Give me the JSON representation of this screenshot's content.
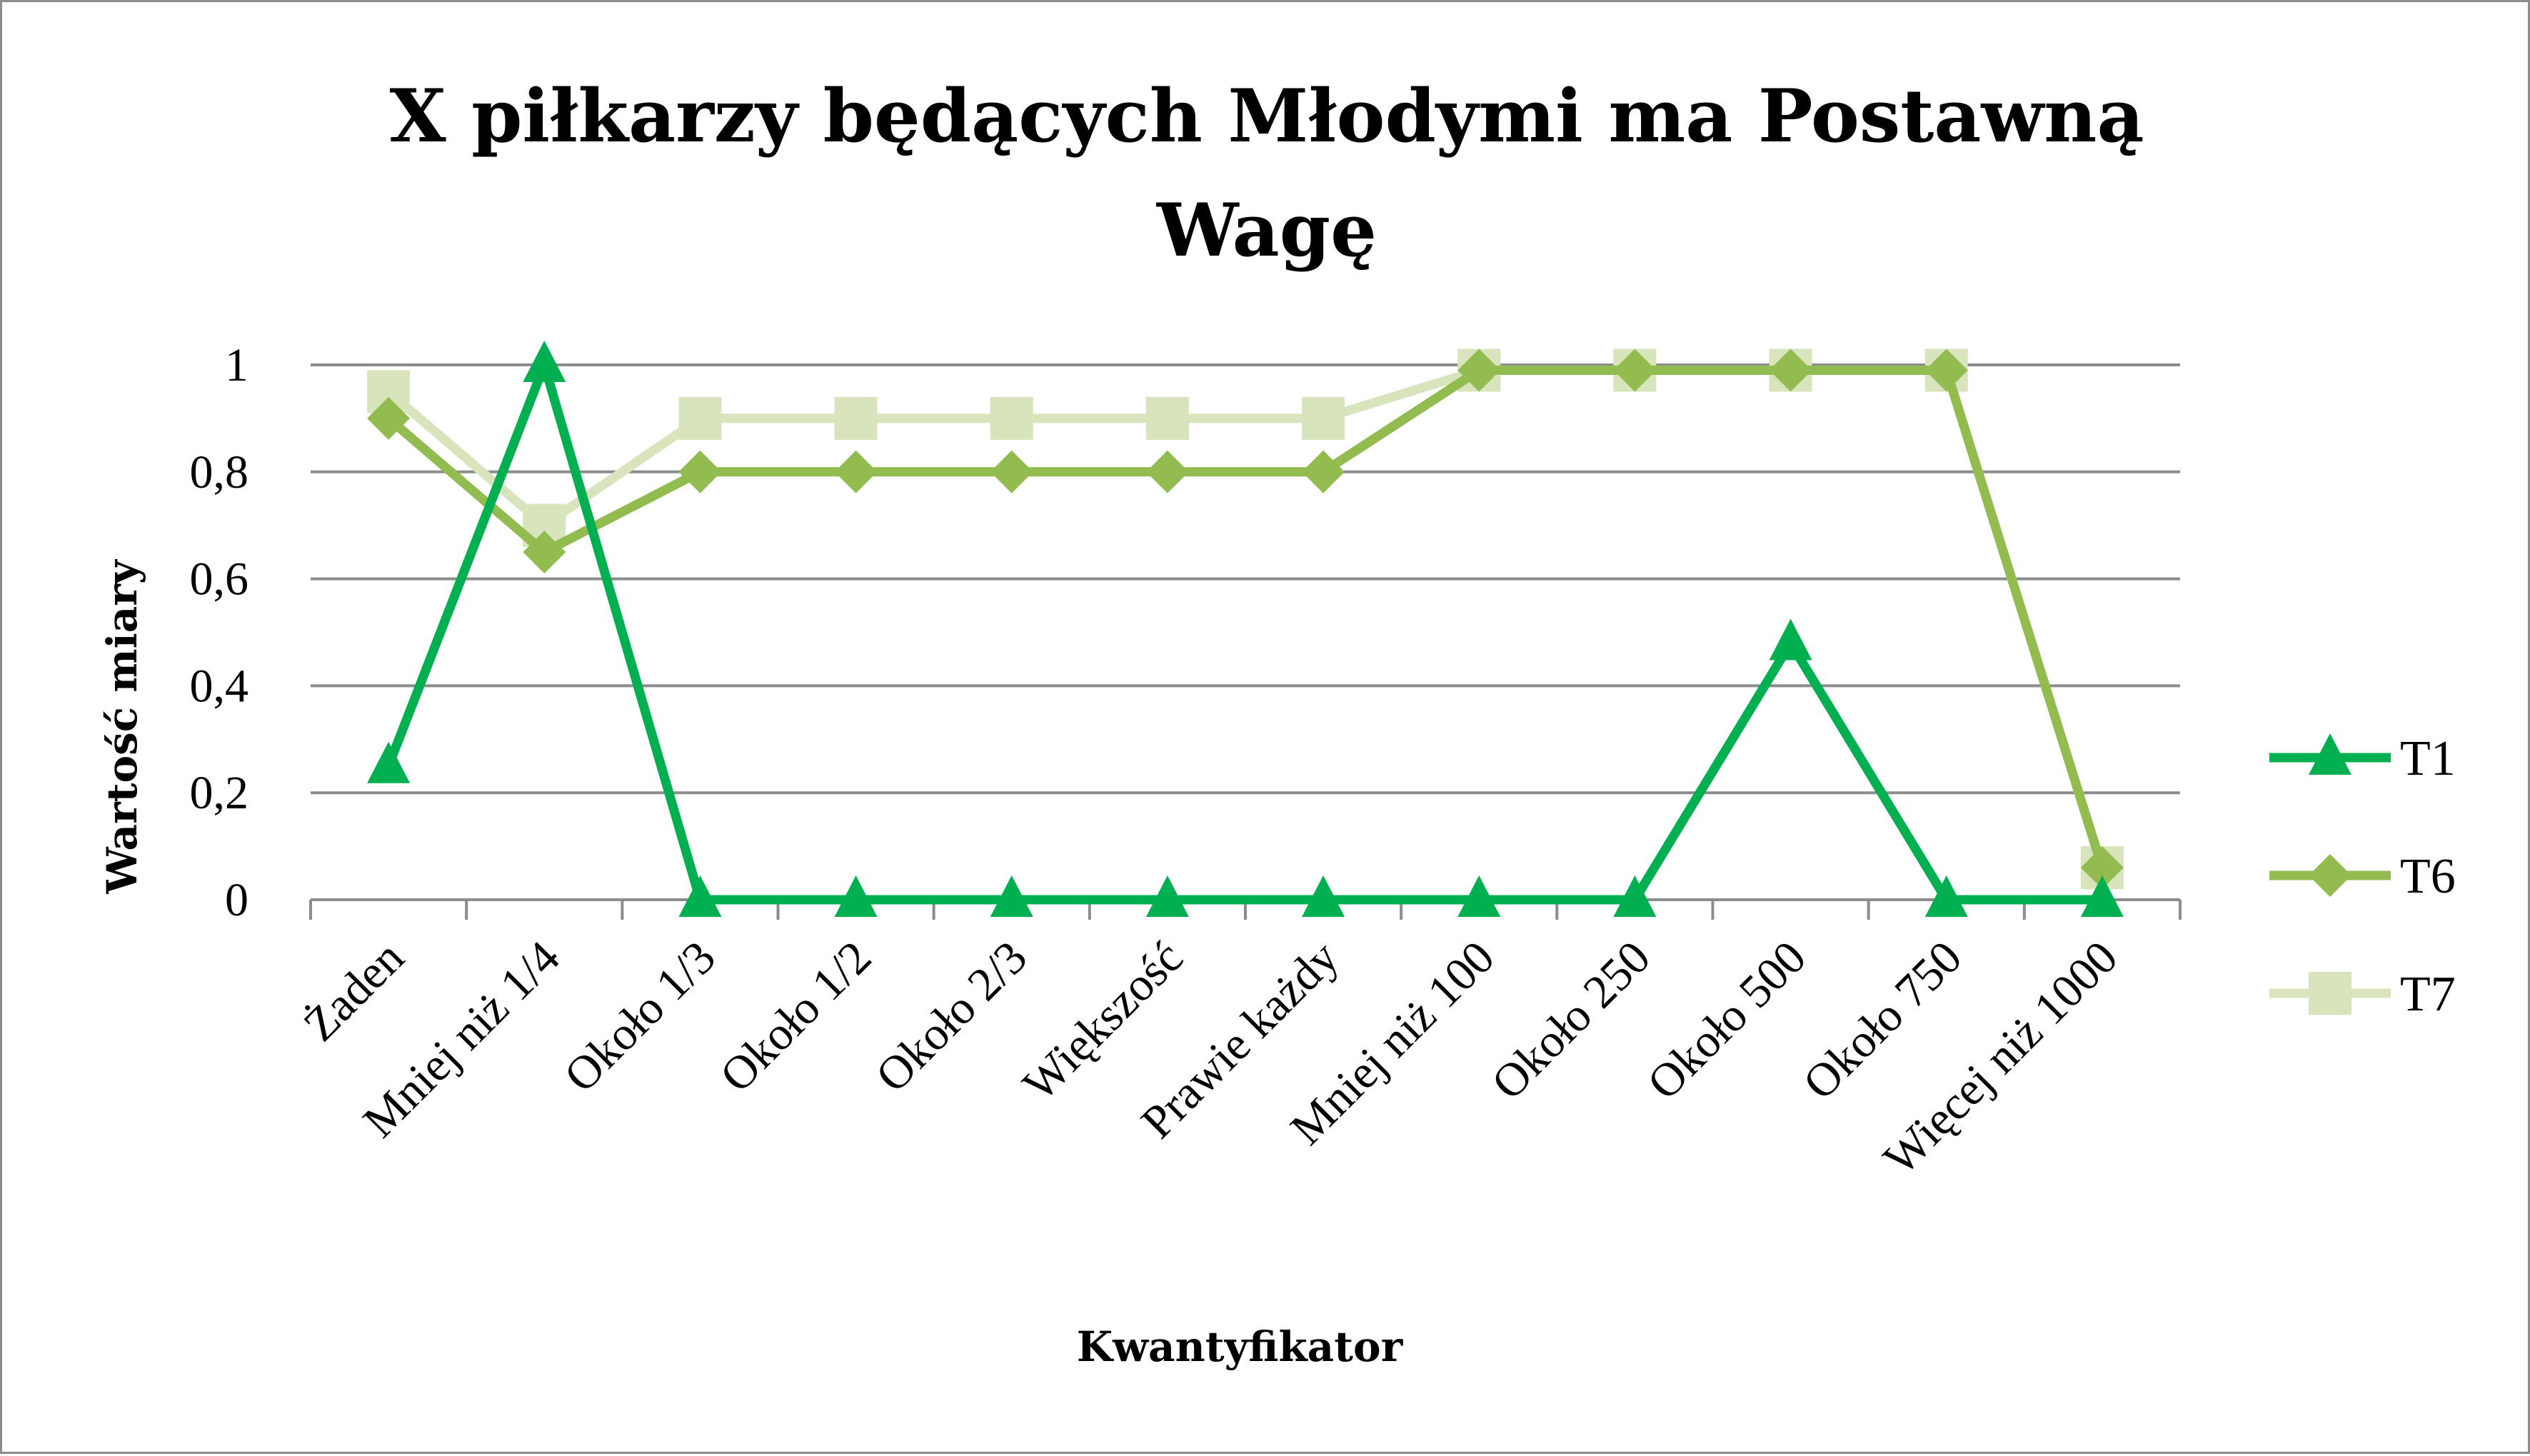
{
  "chart_data": {
    "type": "line",
    "title": "X piłkarzy będących Młodymi ma Postawną Wagę",
    "title_lines": [
      "X piłkarzy będących Młodymi ma Postawną",
      "Wagę"
    ],
    "xlabel": "Kwantyfikator",
    "ylabel": "Wartość miary",
    "ylim": [
      0,
      1
    ],
    "y_ticks": [
      0,
      0.2,
      0.4,
      0.6,
      0.8,
      1
    ],
    "y_tick_labels": [
      "0",
      "0,2",
      "0,4",
      "0,6",
      "0,8",
      "1"
    ],
    "grid": true,
    "legend_position": "right",
    "categories": [
      "Żaden",
      "Mniej niż 1/4",
      "Około 1/3",
      "Około 1/2",
      "Około 2/3",
      "Większość",
      "Prawie każdy",
      "Mniej niż 100",
      "Około 250",
      "Około 500",
      "Około 750",
      "Więcej niż 1000"
    ],
    "series": [
      {
        "name": "T1",
        "marker": "triangle",
        "color": "#00b050",
        "values": [
          0.25,
          1.0,
          0,
          0,
          0,
          0,
          0,
          0,
          0,
          0.48,
          0,
          0
        ]
      },
      {
        "name": "T6",
        "marker": "diamond",
        "color": "#92bb50",
        "values": [
          0.9,
          0.65,
          0.8,
          0.8,
          0.8,
          0.8,
          0.8,
          0.99,
          0.99,
          0.99,
          0.99,
          0.06
        ]
      },
      {
        "name": "T7",
        "marker": "square",
        "color": "#d8e4bc",
        "values": [
          0.95,
          0.7,
          0.9,
          0.9,
          0.9,
          0.9,
          0.9,
          0.99,
          0.99,
          0.99,
          0.99,
          0.06
        ]
      }
    ]
  }
}
